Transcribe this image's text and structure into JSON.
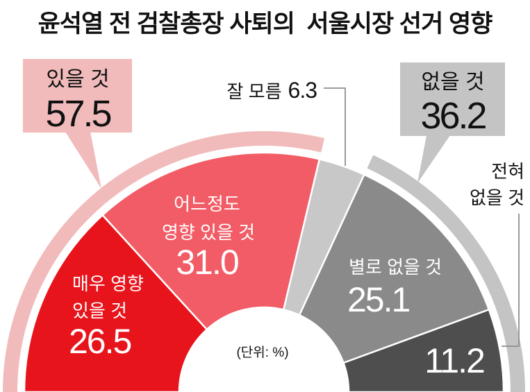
{
  "colors": {
    "leader_line": "#8f8f8f"
  },
  "chart_data": {
    "type": "pie",
    "title": "윤석열 전 검찰총장 사퇴의  서울시장 선거 영향",
    "unit_note": "(단위: %)",
    "groups": [
      {
        "label": "있을 것",
        "value": 57.5,
        "color": "#f1bbbb",
        "slices": [
          {
            "label": [
              "매우 영향",
              "있을 것"
            ],
            "value": 26.5,
            "color": "#e8141c"
          },
          {
            "label": [
              "어느정도",
              "영향 있을 것"
            ],
            "value": 31.0,
            "color": "#f25c66"
          }
        ]
      },
      {
        "slices": [
          {
            "label": [
              "잘 모름"
            ],
            "value": 6.3,
            "color": "#c8c8c8"
          }
        ]
      },
      {
        "label": "없을 것",
        "value": 36.2,
        "color": "#c4c4c4",
        "slices": [
          {
            "label": [
              "별로 없을 것"
            ],
            "value": 25.1,
            "color": "#8a8a8a"
          },
          {
            "label": [
              "전혀",
              "없을 것"
            ],
            "value": 11.2,
            "color": "#4e4e4e"
          }
        ]
      }
    ]
  }
}
